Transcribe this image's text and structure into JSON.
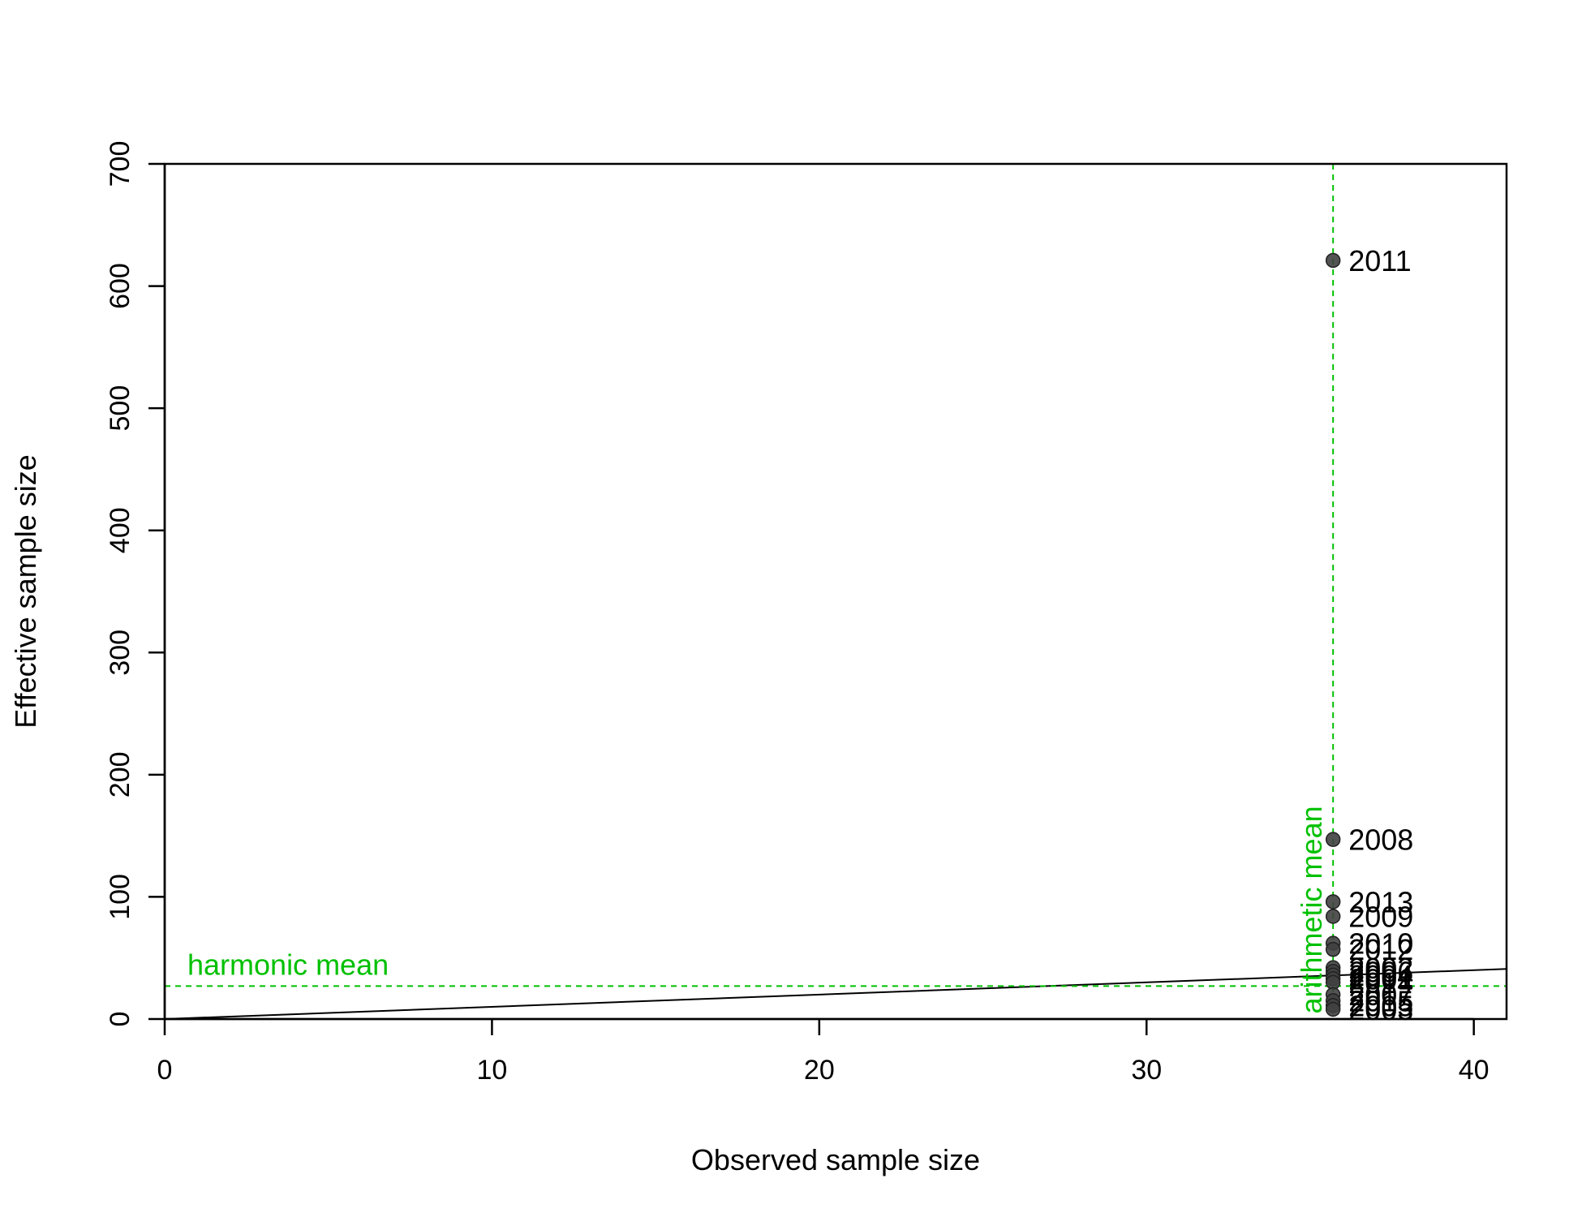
{
  "chart_data": {
    "type": "scatter",
    "xlabel": "Observed sample size",
    "ylabel": "Effective sample size",
    "xlim": [
      0,
      41
    ],
    "ylim": [
      0,
      700
    ],
    "x_ticks": [
      0,
      10,
      20,
      30,
      40
    ],
    "y_ticks": [
      0,
      100,
      200,
      300,
      400,
      500,
      600,
      700
    ],
    "grid": false,
    "point_color": "#404040",
    "reference_line": {
      "type": "identity",
      "slope": 1,
      "intercept": 0,
      "color": "#000000"
    },
    "points": [
      {
        "label": "2011",
        "x": 35.7,
        "y": 621
      },
      {
        "label": "2008",
        "x": 35.7,
        "y": 147
      },
      {
        "label": "2013",
        "x": 35.7,
        "y": 96
      },
      {
        "label": "2009",
        "x": 35.7,
        "y": 84
      },
      {
        "label": "2010",
        "x": 35.7,
        "y": 62
      },
      {
        "label": "2012",
        "x": 35.7,
        "y": 57
      },
      {
        "label": "2002",
        "x": 35.7,
        "y": 42
      },
      {
        "label": "2006",
        "x": 35.7,
        "y": 39
      },
      {
        "label": "2004",
        "x": 35.7,
        "y": 36
      },
      {
        "label": "2001",
        "x": 35.7,
        "y": 33
      },
      {
        "label": "2014",
        "x": 35.7,
        "y": 30
      },
      {
        "label": "2007",
        "x": 35.7,
        "y": 20
      },
      {
        "label": "2015",
        "x": 35.7,
        "y": 15
      },
      {
        "label": "2005",
        "x": 35.7,
        "y": 11
      },
      {
        "label": "2003",
        "x": 35.7,
        "y": 8
      }
    ],
    "annotations": {
      "harmonic_mean": {
        "label": "harmonic mean",
        "value": 27,
        "axis": "y",
        "color": "#00c000"
      },
      "arithmetic_mean": {
        "label": "arithmetic mean",
        "value": 35.7,
        "axis": "x",
        "color": "#00c000"
      }
    }
  }
}
